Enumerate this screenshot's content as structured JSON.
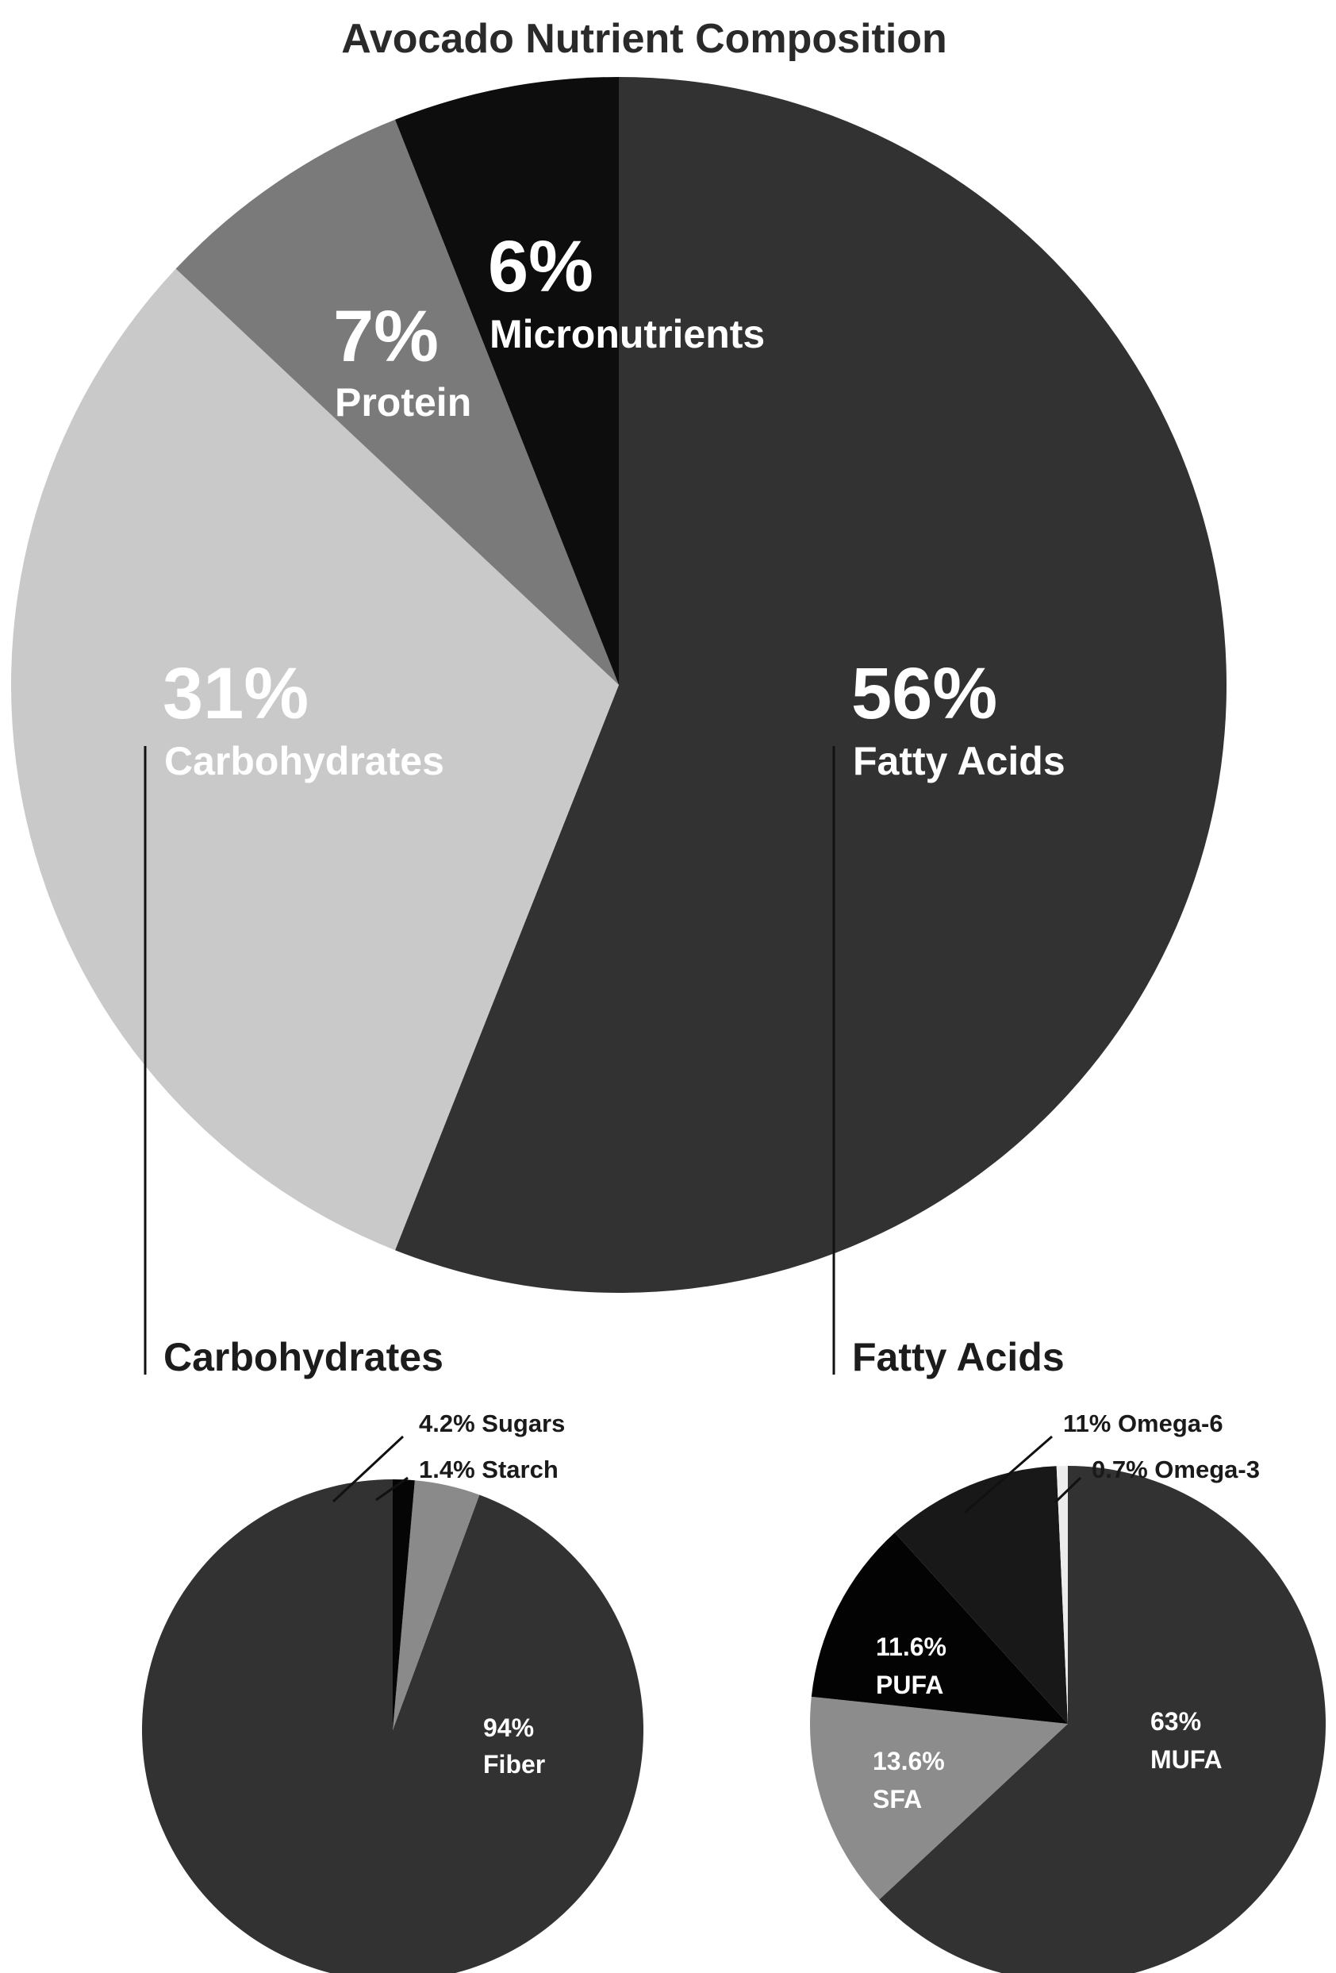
{
  "chart_data": [
    {
      "type": "pie",
      "title": "Avocado Nutrient Composition",
      "slices": [
        {
          "label": "Fatty Acids",
          "value": 56,
          "pct_text": "56%",
          "color": "#323232",
          "text_color": "#ffffff"
        },
        {
          "label": "Carbohydrates",
          "value": 31,
          "pct_text": "31%",
          "color": "#c9c9c9",
          "text_color": "#ffffff"
        },
        {
          "label": "Protein",
          "value": 7,
          "pct_text": "7%",
          "color": "#7a7a7a",
          "text_color": "#ffffff"
        },
        {
          "label": "Micronutrients",
          "value": 6,
          "pct_text": "6%",
          "color": "#0d0d0d",
          "text_color": "#ffffff"
        }
      ]
    },
    {
      "type": "pie",
      "title": "Carbohydrates",
      "slices": [
        {
          "label": "Fiber",
          "value": 94,
          "pct_text": "94%",
          "color": "#323232",
          "text_color": "#ffffff"
        },
        {
          "label": "Sugars",
          "value": 4.2,
          "pct_text": "4.2%",
          "color": "#8a8a8a",
          "text_color": "#1a1a1a"
        },
        {
          "label": "Starch",
          "value": 1.4,
          "pct_text": "1.4%",
          "color": "#050505",
          "text_color": "#1a1a1a"
        }
      ]
    },
    {
      "type": "pie",
      "title": "Fatty Acids",
      "slices": [
        {
          "label": "MUFA",
          "value": 63,
          "pct_text": "63%",
          "color": "#323232",
          "text_color": "#ffffff"
        },
        {
          "label": "SFA",
          "value": 13.6,
          "pct_text": "13.6%",
          "color": "#8c8c8c",
          "text_color": "#ffffff"
        },
        {
          "label": "PUFA",
          "value": 11.6,
          "pct_text": "11.6%",
          "color": "#030303",
          "text_color": "#ffffff"
        },
        {
          "label": "Omega-6",
          "value": 11,
          "pct_text": "11%",
          "color": "#181818",
          "text_color": "#1a1a1a"
        },
        {
          "label": "Omega-3",
          "value": 0.7,
          "pct_text": "0.7%",
          "color": "#ececec",
          "text_color": "#1a1a1a"
        }
      ]
    }
  ]
}
